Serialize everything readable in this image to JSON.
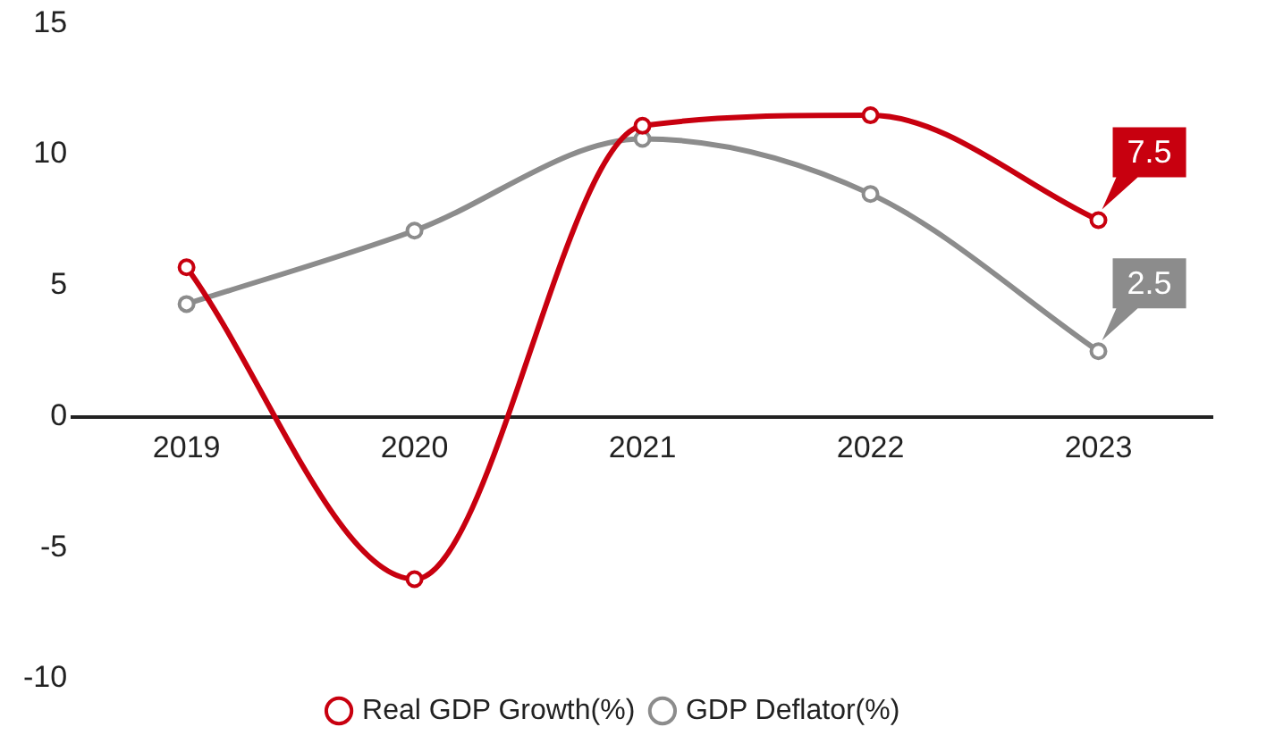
{
  "chart_data": {
    "type": "line",
    "categories": [
      "2019",
      "2020",
      "2021",
      "2022",
      "2023"
    ],
    "series": [
      {
        "name": "Real GDP Growth(%)",
        "color": "#c8000f",
        "values": [
          5.7,
          -6.2,
          11.1,
          11.5,
          7.5
        ],
        "value_labels": [
          null,
          null,
          null,
          null,
          "7.5"
        ]
      },
      {
        "name": "GDP Deflator(%)",
        "color": "#8c8c8c",
        "values": [
          4.3,
          7.1,
          10.6,
          8.5,
          2.5
        ],
        "value_labels": [
          null,
          null,
          null,
          null,
          "2.5"
        ]
      }
    ],
    "ylim": [
      -10,
      15
    ],
    "yticks": [
      -10,
      -5,
      0,
      5,
      10,
      15
    ],
    "grid": false,
    "legend": "bottom",
    "marker": "circle",
    "line_style": "solid"
  }
}
